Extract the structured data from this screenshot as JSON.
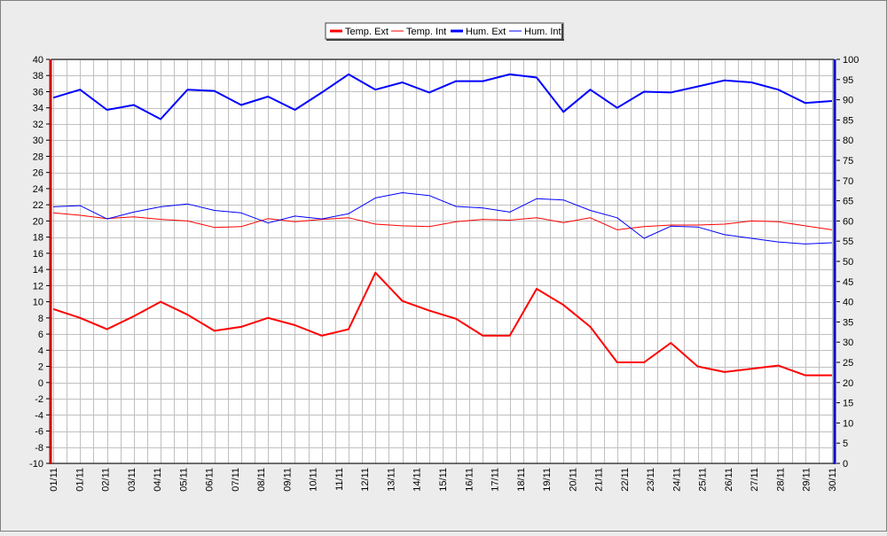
{
  "chart_data": {
    "type": "line",
    "categories": [
      "01/11",
      "02/11",
      "03/11",
      "04/11",
      "05/11",
      "06/11",
      "07/11",
      "08/11",
      "09/11",
      "10/11",
      "11/11",
      "12/11",
      "13/11",
      "14/11",
      "15/11",
      "16/11",
      "17/11",
      "18/11",
      "19/11",
      "20/11",
      "21/11",
      "22/11",
      "23/11",
      "24/11",
      "25/11",
      "26/11",
      "27/11",
      "28/11",
      "29/11",
      "30/11"
    ],
    "x_tick_labels": [
      "01/11",
      "01/11",
      "02/11",
      "03/11",
      "04/11",
      "05/11",
      "06/11",
      "07/11",
      "08/11",
      "09/11",
      "10/11",
      "11/11",
      "12/11",
      "13/11",
      "14/11",
      "15/11",
      "16/11",
      "17/11",
      "18/11",
      "19/11",
      "20/11",
      "21/11",
      "22/11",
      "23/11",
      "24/11",
      "25/11",
      "26/11",
      "27/11",
      "28/11",
      "29/11",
      "30/11"
    ],
    "y_left": {
      "min": -10,
      "max": 40,
      "step": 2
    },
    "y_right": {
      "min": 0,
      "max": 100,
      "step": 5
    },
    "legend": {
      "placement": "top-center",
      "items": [
        {
          "label": "Temp. Ext",
          "color": "#ff0000",
          "weight": "thick"
        },
        {
          "label": "Temp. Int",
          "color": "#ff0000",
          "weight": "thin"
        },
        {
          "label": "Hum. Ext",
          "color": "#0000ff",
          "weight": "thick"
        },
        {
          "label": "Hum. Int",
          "color": "#0000ff",
          "weight": "thin"
        }
      ]
    },
    "grid": true,
    "series": [
      {
        "name": "Temp. Ext",
        "axis": "left",
        "color": "#ff0000",
        "weight": "thick",
        "values": [
          9.1,
          8.0,
          6.6,
          8.2,
          10.0,
          8.4,
          6.4,
          6.9,
          8.0,
          7.1,
          5.8,
          6.6,
          13.6,
          10.1,
          8.9,
          7.9,
          5.8,
          5.8,
          11.6,
          9.6,
          6.9,
          2.5,
          2.5,
          4.9,
          2.0,
          1.3,
          1.7,
          2.1,
          0.9,
          0.9
        ]
      },
      {
        "name": "Temp. Int",
        "axis": "left",
        "color": "#ff0000",
        "weight": "thin",
        "values": [
          21.0,
          20.7,
          20.3,
          20.5,
          20.2,
          20.0,
          19.2,
          19.3,
          20.3,
          19.9,
          20.2,
          20.4,
          19.6,
          19.4,
          19.3,
          19.9,
          20.2,
          20.1,
          20.4,
          19.8,
          20.4,
          18.9,
          19.3,
          19.5,
          19.5,
          19.6,
          20.0,
          19.9,
          19.4,
          18.9
        ]
      },
      {
        "name": "Hum. Ext",
        "axis": "right",
        "color": "#0000ff",
        "weight": "thick",
        "values": [
          90.5,
          92.5,
          87.5,
          88.7,
          85.2,
          92.5,
          92.2,
          88.7,
          90.8,
          87.5,
          91.8,
          96.3,
          92.5,
          94.3,
          91.8,
          94.6,
          94.6,
          96.3,
          95.5,
          87.0,
          92.5,
          88.0,
          92.0,
          91.8,
          93.3,
          94.8,
          94.3,
          92.5,
          89.2,
          89.7
        ]
      },
      {
        "name": "Hum. Int",
        "axis": "right",
        "color": "#0000ff",
        "weight": "thin",
        "values": [
          63.5,
          63.8,
          60.5,
          62.2,
          63.5,
          64.2,
          62.6,
          62.0,
          59.5,
          61.2,
          60.5,
          61.8,
          65.7,
          67.0,
          66.3,
          63.6,
          63.2,
          62.2,
          65.5,
          65.2,
          62.6,
          60.8,
          55.7,
          58.7,
          58.5,
          56.6,
          55.7,
          54.8,
          54.3,
          54.6
        ]
      }
    ]
  }
}
